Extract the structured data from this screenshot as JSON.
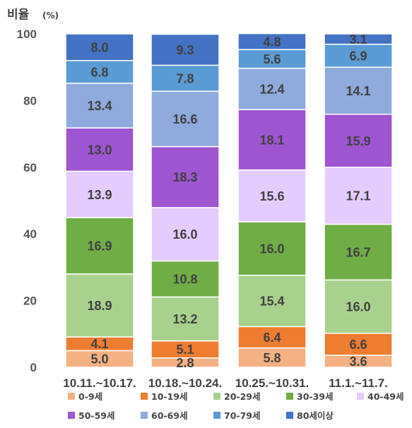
{
  "chart_data": {
    "type": "bar",
    "stacked": true,
    "ylabel": "비율",
    "ylabel_unit": "(%)",
    "ylim": [
      0,
      100
    ],
    "yticks": [
      0,
      20,
      40,
      60,
      80,
      100
    ],
    "categories": [
      "10.11.~10.17.",
      "10.18.~10.24.",
      "10.25.~10.31.",
      "11.1.~11.7."
    ],
    "series": [
      {
        "name": "0-9세",
        "color": "#F4B183",
        "values": [
          5.0,
          2.8,
          5.8,
          3.6
        ]
      },
      {
        "name": "10-19세",
        "color": "#ED7D31",
        "values": [
          4.1,
          5.1,
          6.4,
          6.6
        ]
      },
      {
        "name": "20-29세",
        "color": "#A9D18E",
        "values": [
          18.9,
          13.2,
          15.4,
          16.0
        ]
      },
      {
        "name": "30-39세",
        "color": "#70AD47",
        "values": [
          16.9,
          10.8,
          16.0,
          16.7
        ]
      },
      {
        "name": "40-49세",
        "color": "#E4CCFF",
        "values": [
          13.9,
          16.0,
          15.6,
          17.1
        ]
      },
      {
        "name": "50-59세",
        "color": "#9E55D1",
        "values": [
          13.0,
          18.3,
          18.1,
          15.9
        ]
      },
      {
        "name": "60-69세",
        "color": "#8FAADC",
        "values": [
          13.4,
          16.6,
          12.4,
          14.1
        ]
      },
      {
        "name": "70-79세",
        "color": "#5B9BD5",
        "values": [
          6.8,
          7.8,
          5.6,
          6.9
        ]
      },
      {
        "name": "80세이상",
        "color": "#4472C4",
        "values": [
          8.0,
          9.3,
          4.8,
          3.1
        ]
      }
    ],
    "grid": false,
    "legend_position": "bottom"
  }
}
